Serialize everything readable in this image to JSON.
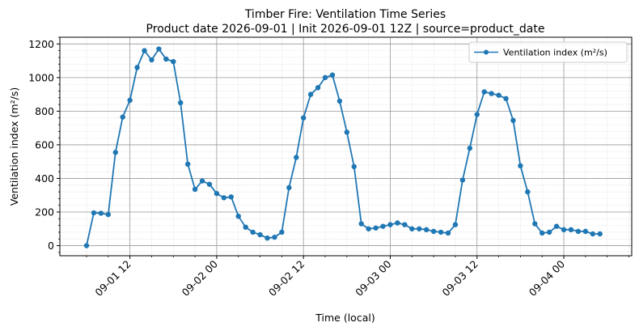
{
  "chart_data": {
    "type": "line",
    "title": "Timber Fire: Ventilation Time Series",
    "subtitle": "Product date 2026-09-01 | Init 2026-09-01 12Z | source=product_date",
    "xlabel": "Time (local)",
    "ylabel": "Ventilation index (m²/s)",
    "x_tick_labels": [
      "09-01 12",
      "09-02 00",
      "09-02 12",
      "09-03 00",
      "09-03 12",
      "09-04 00"
    ],
    "y_ticks": [
      0,
      200,
      400,
      600,
      800,
      1000,
      1200
    ],
    "ylim": [
      -60,
      1240
    ],
    "grid": true,
    "legend_position": "top-right",
    "series": [
      {
        "name": "Ventilation index (m²/s)",
        "color": "#1f77b4",
        "x": [
          "09-01 06",
          "09-01 07",
          "09-01 08",
          "09-01 09",
          "09-01 10",
          "09-01 11",
          "09-01 12",
          "09-01 13",
          "09-01 14",
          "09-01 15",
          "09-01 16",
          "09-01 17",
          "09-01 18",
          "09-01 19",
          "09-01 20",
          "09-01 21",
          "09-01 22",
          "09-01 23",
          "09-02 00",
          "09-02 01",
          "09-02 02",
          "09-02 03",
          "09-02 04",
          "09-02 05",
          "09-02 06",
          "09-02 07",
          "09-02 08",
          "09-02 09",
          "09-02 10",
          "09-02 11",
          "09-02 12",
          "09-02 13",
          "09-02 14",
          "09-02 15",
          "09-02 16",
          "09-02 17",
          "09-02 18",
          "09-02 19",
          "09-02 20",
          "09-02 21",
          "09-02 22",
          "09-02 23",
          "09-03 00",
          "09-03 01",
          "09-03 02",
          "09-03 03",
          "09-03 04",
          "09-03 05",
          "09-03 06",
          "09-03 07",
          "09-03 08",
          "09-03 09",
          "09-03 10",
          "09-03 11",
          "09-03 12",
          "09-03 13",
          "09-03 14",
          "09-03 15",
          "09-03 16",
          "09-03 17",
          "09-03 18",
          "09-03 19",
          "09-03 20",
          "09-03 21",
          "09-03 22",
          "09-03 23",
          "09-04 00",
          "09-04 01",
          "09-04 02",
          "09-04 03",
          "09-04 04",
          "09-04 05"
        ],
        "y": [
          0,
          195,
          193,
          185,
          555,
          765,
          865,
          1060,
          1160,
          1105,
          1170,
          1110,
          1095,
          850,
          485,
          335,
          385,
          365,
          310,
          285,
          290,
          175,
          110,
          80,
          65,
          45,
          50,
          80,
          345,
          525,
          760,
          900,
          940,
          1000,
          1015,
          860,
          675,
          470,
          130,
          100,
          105,
          115,
          125,
          135,
          125,
          100,
          100,
          95,
          85,
          80,
          75,
          125,
          390,
          580,
          780,
          915,
          905,
          895,
          875,
          745,
          475,
          320,
          130,
          75,
          80,
          115,
          95,
          95,
          85,
          85,
          70,
          70
        ]
      }
    ]
  }
}
